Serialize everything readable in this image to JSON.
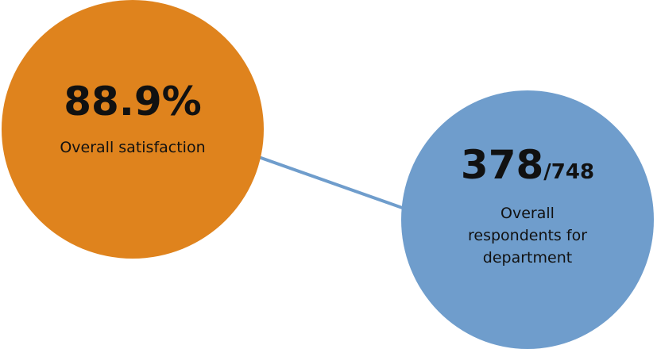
{
  "colors": {
    "satisfaction_circle": "#df831d",
    "respondents_circle": "#6f9dcc",
    "connector": "#6f9dcc"
  },
  "satisfaction": {
    "value": "88.9%",
    "label": "Overall satisfaction"
  },
  "respondents": {
    "value": "378",
    "total": "/748",
    "label": "Overall respondents for department"
  }
}
